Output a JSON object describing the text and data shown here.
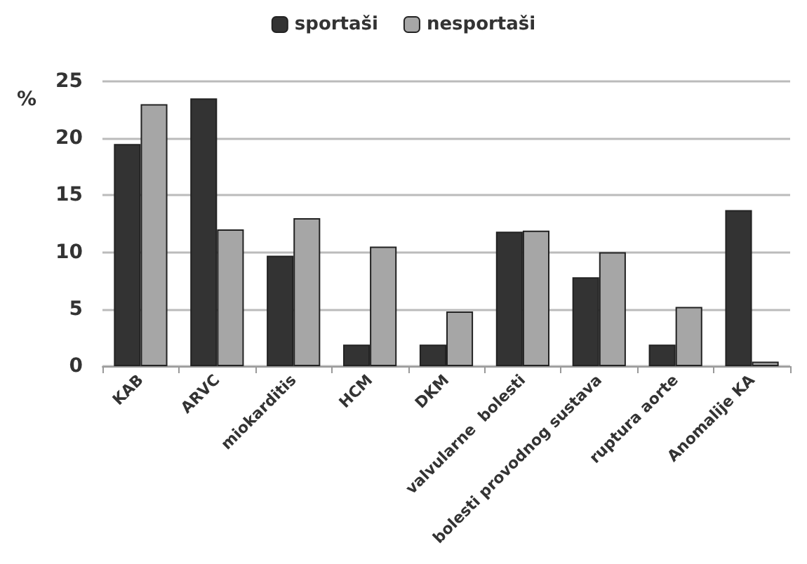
{
  "chart_data": {
    "type": "bar",
    "ylabel": "%",
    "categories": [
      "KAB",
      "ARVC",
      "miokarditis",
      "HCM",
      "DKM",
      "valvularne  bolesti",
      "bolesti provodnog sustava",
      "ruptura aorte",
      "Anomalije KA"
    ],
    "series": [
      {
        "name": "sportaši",
        "color": "#333333",
        "values": [
          19.5,
          23.5,
          9.7,
          1.9,
          1.9,
          11.8,
          7.8,
          1.9,
          13.7
        ]
      },
      {
        "name": "nesportaši",
        "color": "#a6a6a6",
        "values": [
          23,
          12,
          13,
          10.5,
          4.8,
          11.9,
          10,
          5.2,
          0.4
        ]
      }
    ],
    "ylim": [
      0,
      25
    ],
    "yticks": [
      0,
      5,
      10,
      15,
      20,
      25
    ],
    "grid": "y",
    "legend": "top"
  }
}
